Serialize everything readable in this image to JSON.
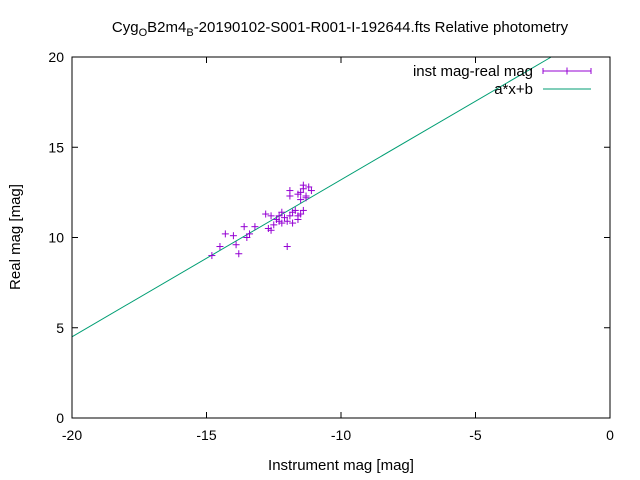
{
  "chart_data": {
    "type": "scatter",
    "title": {
      "prefix": "Cyg",
      "sub1": "O",
      "mid": "B2m4",
      "sub2": "B",
      "suffix": "-20190102-S001-R001-I-192644.fts Relative photometry"
    },
    "xlabel": "Instrument mag [mag]",
    "ylabel": "Real mag [mag]",
    "xlim": [
      -20,
      0
    ],
    "ylim": [
      0,
      20
    ],
    "xticks": [
      -20,
      -15,
      -10,
      -5,
      0
    ],
    "yticks": [
      0,
      5,
      10,
      15,
      20
    ],
    "grid": false,
    "legend_position": "top-right",
    "series": [
      {
        "name": "inst mag-real mag",
        "type": "scatter",
        "color": "#9400d3",
        "points": [
          [
            -14.8,
            9.0
          ],
          [
            -14.5,
            9.5
          ],
          [
            -14.3,
            10.2
          ],
          [
            -14.0,
            10.1
          ],
          [
            -13.9,
            9.6
          ],
          [
            -13.8,
            9.1
          ],
          [
            -13.6,
            10.6
          ],
          [
            -13.5,
            10.0
          ],
          [
            -13.4,
            10.2
          ],
          [
            -13.2,
            10.6
          ],
          [
            -12.8,
            11.3
          ],
          [
            -12.7,
            10.5
          ],
          [
            -12.6,
            11.2
          ],
          [
            -12.6,
            10.4
          ],
          [
            -12.5,
            10.7
          ],
          [
            -12.4,
            11.0
          ],
          [
            -12.3,
            10.9
          ],
          [
            -12.2,
            11.4
          ],
          [
            -12.1,
            11.1
          ],
          [
            -12.0,
            10.9
          ],
          [
            -12.0,
            9.5
          ],
          [
            -11.9,
            11.2
          ],
          [
            -11.8,
            10.8
          ],
          [
            -11.7,
            11.5
          ],
          [
            -11.6,
            11.2
          ],
          [
            -11.5,
            11.3
          ],
          [
            -11.4,
            11.5
          ],
          [
            -11.9,
            12.6
          ],
          [
            -11.9,
            12.3
          ],
          [
            -11.6,
            12.4
          ],
          [
            -11.5,
            12.5
          ],
          [
            -11.4,
            12.7
          ],
          [
            -11.3,
            12.2
          ],
          [
            -11.2,
            12.8
          ],
          [
            -11.1,
            12.6
          ],
          [
            -11.5,
            12.1
          ],
          [
            -11.3,
            12.3
          ],
          [
            -11.8,
            11.4
          ],
          [
            -11.6,
            11.0
          ],
          [
            -12.3,
            11.2
          ],
          [
            -12.2,
            10.8
          ],
          [
            -11.4,
            12.9
          ]
        ]
      },
      {
        "name": "a*x+b",
        "type": "line",
        "color": "#009e73",
        "slope": 0.87,
        "intercept": 21.9,
        "x_range": [
          -20,
          -2.2
        ]
      }
    ]
  }
}
